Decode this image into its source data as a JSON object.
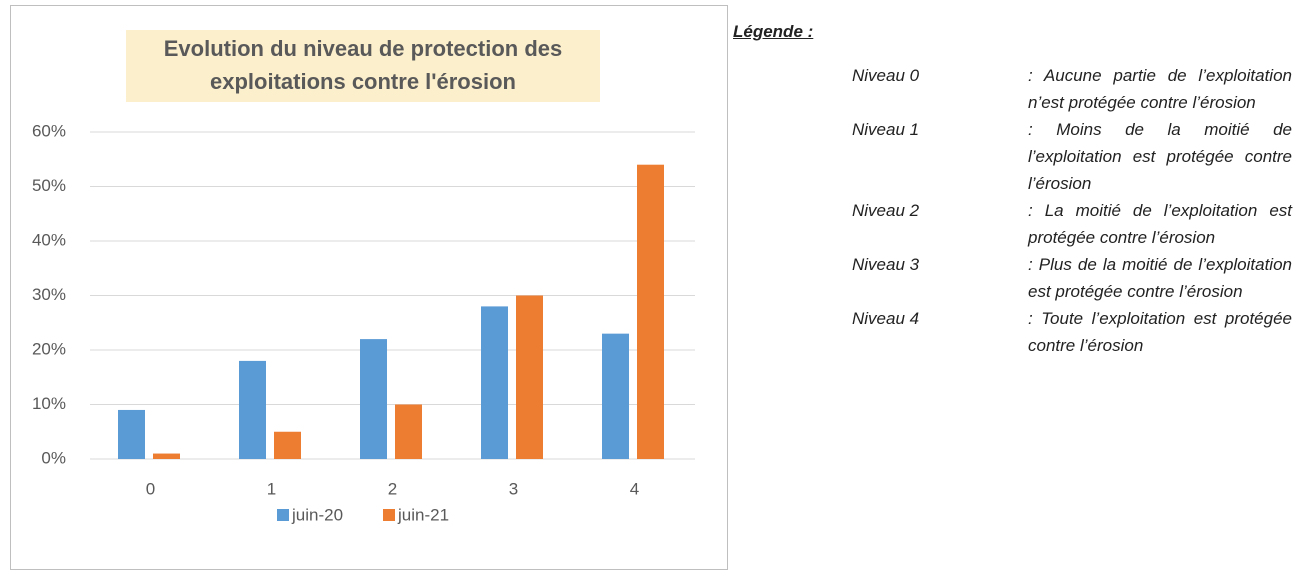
{
  "chart_data": {
    "type": "bar",
    "title": "Evolution du niveau de protection des exploitations contre l'érosion",
    "categories": [
      "0",
      "1",
      "2",
      "3",
      "4"
    ],
    "series": [
      {
        "name": "juin-20",
        "color": "#5b9bd5",
        "values": [
          9,
          18,
          22,
          28,
          23
        ]
      },
      {
        "name": "juin-21",
        "color": "#ed7d31",
        "values": [
          1,
          5,
          10,
          30,
          54
        ]
      }
    ],
    "ylim": [
      0,
      60
    ],
    "yticks": [
      {
        "value": 0,
        "label": "0%"
      },
      {
        "value": 10,
        "label": "10%"
      },
      {
        "value": 20,
        "label": "20%"
      },
      {
        "value": 30,
        "label": "30%"
      },
      {
        "value": 40,
        "label": "40%"
      },
      {
        "value": 50,
        "label": "50%"
      },
      {
        "value": 60,
        "label": "60%"
      }
    ],
    "grid": true,
    "legend": "bottom"
  },
  "legend_note": {
    "heading": "Légende :",
    "items": [
      {
        "level": "Niveau 0",
        "description": ": Aucune partie de l’exploitation n’est protégée contre l’érosion"
      },
      {
        "level": "Niveau 1",
        "description": ": Moins de la moitié de l’exploitation est protégée contre l’érosion"
      },
      {
        "level": "Niveau 2",
        "description": ": La moitié de l’exploitation est protégée contre l’érosion"
      },
      {
        "level": "Niveau 3",
        "description": ": Plus de la moitié de l’exploitation est protégée contre l’érosion"
      },
      {
        "level": "Niveau 4",
        "description": ": Toute l’exploitation est protégée contre l’érosion"
      }
    ]
  }
}
